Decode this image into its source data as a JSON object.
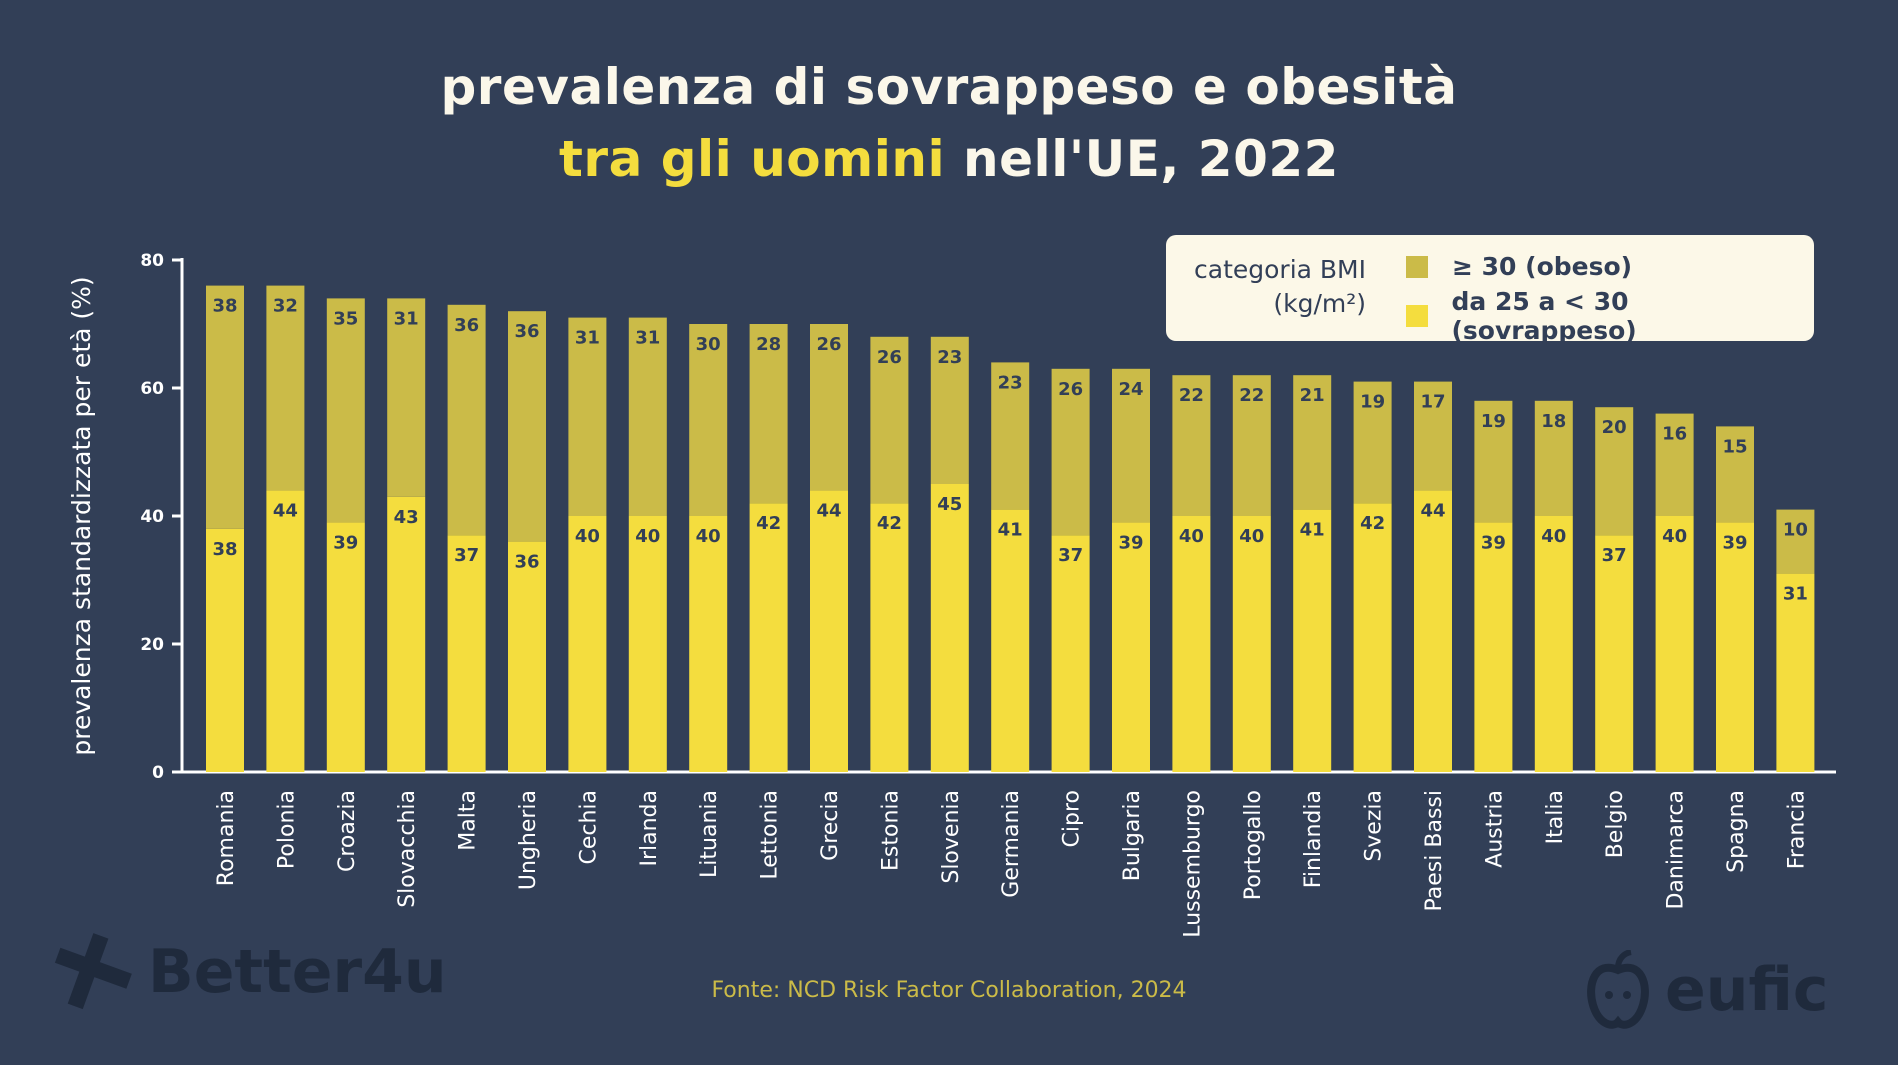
{
  "title": {
    "line1": "prevalenza di sovrappeso e obesità",
    "line2_highlight": "tra gli uomini",
    "line2_rest": " nell'UE, 2022"
  },
  "legend": {
    "title_line1": "categoria BMI",
    "title_line2": "(kg/m²)",
    "items": [
      {
        "label": "≥ 30 (obeso)",
        "color": "#cbbb48"
      },
      {
        "label": "da 25 a < 30 (sovrappeso)",
        "color": "#f4dd3e"
      }
    ]
  },
  "source": "Fonte: NCD Risk Factor Collaboration, 2024",
  "logos": {
    "left": "Better4u",
    "right": "eufic"
  },
  "chart_data": {
    "type": "bar",
    "stacked": true,
    "ylabel": "prevalenza standardizzata per età (%)",
    "ylim": [
      0,
      80
    ],
    "yticks": [
      0,
      20,
      40,
      60,
      80
    ],
    "grid": false,
    "legend_position": "top-right",
    "categories": [
      "Romania",
      "Polonia",
      "Croazia",
      "Slovacchia",
      "Malta",
      "Ungheria",
      "Cechia",
      "Irlanda",
      "Lituania",
      "Lettonia",
      "Grecia",
      "Estonia",
      "Slovenia",
      "Germania",
      "Cipro",
      "Bulgaria",
      "Lussemburgo",
      "Portogallo",
      "Finlandia",
      "Svezia",
      "Paesi Bassi",
      "Austria",
      "Italia",
      "Belgio",
      "Danimarca",
      "Spagna",
      "Francia"
    ],
    "series": [
      {
        "name": "da 25 a < 30 (sovrappeso)",
        "color": "#f4dd3e",
        "values": [
          38,
          44,
          39,
          43,
          37,
          36,
          40,
          40,
          40,
          42,
          44,
          42,
          45,
          41,
          37,
          39,
          40,
          40,
          41,
          42,
          44,
          39,
          40,
          37,
          40,
          39,
          31
        ]
      },
      {
        "name": "≥ 30 (obeso)",
        "color": "#cbbb48",
        "values": [
          38,
          32,
          35,
          31,
          36,
          36,
          31,
          31,
          30,
          28,
          26,
          26,
          23,
          23,
          26,
          24,
          22,
          22,
          21,
          19,
          17,
          19,
          18,
          20,
          16,
          15,
          10
        ]
      }
    ]
  }
}
